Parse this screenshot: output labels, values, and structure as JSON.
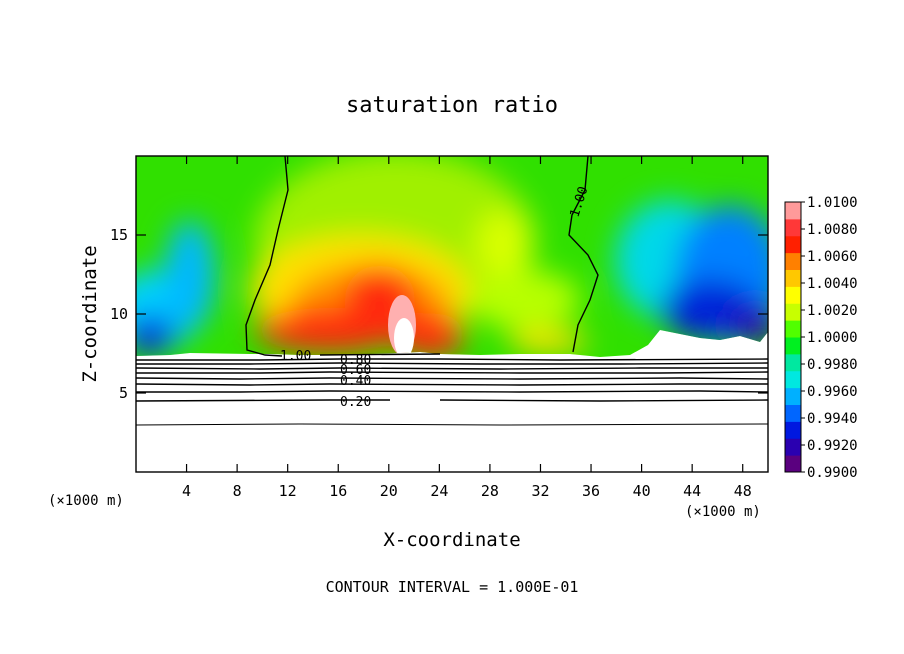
{
  "chart_data": {
    "type": "heatmap",
    "title": "saturation ratio",
    "xlabel": "X-coordinate",
    "ylabel": "Z-coordinate",
    "x_unit_label": "(×1000 m)",
    "xlim": [
      0,
      50
    ],
    "ylim": [
      0,
      20
    ],
    "x_ticks": [
      4,
      8,
      12,
      16,
      20,
      24,
      28,
      32,
      36,
      40,
      44,
      48
    ],
    "y_ticks": [
      5,
      10,
      15
    ],
    "colorbar": {
      "min": 0.99,
      "max": 1.01,
      "ticks": [
        "1.0100",
        "1.0080",
        "1.0060",
        "1.0040",
        "1.0020",
        "1.0000",
        "0.9980",
        "0.9960",
        "0.9940",
        "0.9920",
        "0.9900"
      ],
      "colors": [
        "#5a007f",
        "#2a00b0",
        "#0018e0",
        "#0066ff",
        "#00b0ff",
        "#00e8e0",
        "#00e8a0",
        "#00f020",
        "#50ff00",
        "#c8ff00",
        "#ffff00",
        "#ffc800",
        "#ff8000",
        "#ff2000",
        "#ff3838",
        "#ff9a9a"
      ]
    },
    "field_features": [
      {
        "x": 21,
        "z": 10,
        "value": 1.01
      },
      {
        "x": 20,
        "z": 12,
        "value": 1.006
      },
      {
        "x": 15,
        "z": 9,
        "value": 1.007
      },
      {
        "x": 29,
        "z": 12,
        "value": 1.0025
      },
      {
        "x": 4,
        "z": 10,
        "value": 0.996
      },
      {
        "x": 44,
        "z": 10,
        "value": 0.993
      },
      {
        "x": 2,
        "z": 17,
        "value": 0.9995
      },
      {
        "x": 47,
        "z": 17,
        "value": 0.9985
      }
    ],
    "contour_interval": 0.1,
    "contour_levels_labeled": [
      "1.00",
      "0.80",
      "0.60",
      "0.40",
      "0.20"
    ],
    "contour_note": "CONTOUR INTERVAL = 1.000E-01"
  }
}
